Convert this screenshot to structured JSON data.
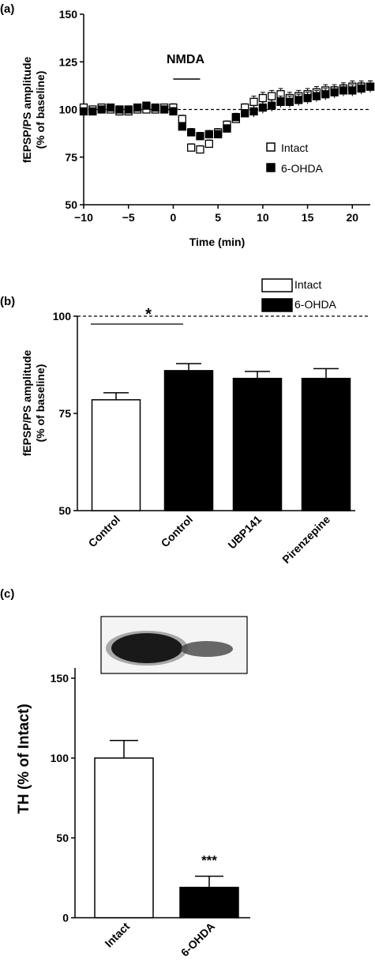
{
  "panel_labels": {
    "a": "(a)",
    "b": "(b)",
    "c": "(c)"
  },
  "colors": {
    "filled": "#000000",
    "open": "#ffffff",
    "axis": "#000000"
  },
  "chart_data": [
    {
      "panel": "(a)",
      "type": "scatter",
      "xlabel": "Time (min)",
      "ylabel_lines": [
        "fEPSP/PS amplitude",
        "(% of baseline)"
      ],
      "xlim": [
        -10,
        22
      ],
      "ylim": [
        50,
        150
      ],
      "xticks": [
        -10,
        -5,
        0,
        5,
        10,
        15,
        20
      ],
      "yticks": [
        50,
        75,
        100,
        125,
        150
      ],
      "reference_line": 100,
      "annotation": {
        "text": "NMDA",
        "from": 0,
        "to": 3,
        "y": 116
      },
      "series": [
        {
          "name": "Intact",
          "marker": "open-square",
          "x": [
            -10,
            -9,
            -8,
            -7,
            -6,
            -5,
            -4,
            -3,
            -2,
            -1,
            0,
            1,
            2,
            3,
            4,
            5,
            6,
            7,
            8,
            9,
            10,
            11,
            12,
            13,
            14,
            15,
            16,
            17,
            18,
            19,
            20,
            21,
            22
          ],
          "y": [
            101,
            100,
            101,
            100,
            99,
            99,
            100,
            100,
            100,
            101,
            101,
            95,
            80,
            79,
            82,
            88,
            92,
            95,
            101,
            104,
            106,
            107,
            108,
            106,
            107,
            108,
            109,
            110,
            110,
            111,
            112,
            112,
            112
          ],
          "err": [
            1,
            1,
            1,
            1,
            1,
            1,
            1,
            1,
            1,
            1,
            2,
            2,
            2,
            2,
            2,
            2,
            2,
            2,
            2,
            3,
            3,
            3,
            3,
            3,
            3,
            3,
            3,
            3,
            3,
            3,
            3,
            3,
            3
          ]
        },
        {
          "name": "6-OHDA",
          "marker": "filled-square",
          "x": [
            -10,
            -9,
            -8,
            -7,
            -6,
            -5,
            -4,
            -3,
            -2,
            -1,
            0,
            1,
            2,
            3,
            4,
            5,
            6,
            7,
            8,
            9,
            10,
            11,
            12,
            13,
            14,
            15,
            16,
            17,
            18,
            19,
            20,
            21,
            22
          ],
          "y": [
            99,
            99,
            100,
            101,
            100,
            100,
            101,
            102,
            101,
            100,
            99,
            91,
            88,
            86,
            87,
            87,
            90,
            96,
            98,
            99,
            101,
            102,
            104,
            104,
            105,
            106,
            107,
            108,
            109,
            110,
            110,
            111,
            112
          ],
          "err": [
            1,
            1,
            1,
            1,
            1,
            1,
            1,
            1,
            1,
            1,
            2,
            2,
            2,
            2,
            2,
            2,
            2,
            2,
            2,
            3,
            3,
            3,
            3,
            3,
            3,
            3,
            3,
            3,
            3,
            3,
            3,
            3,
            3
          ]
        }
      ],
      "legend": [
        "Intact",
        "6-OHDA"
      ]
    },
    {
      "panel": "(b)",
      "type": "bar",
      "ylabel_lines": [
        "fEPSP/PS amplitude",
        "(% of baseline)"
      ],
      "ylim": [
        50,
        100
      ],
      "yticks": [
        50,
        75,
        100
      ],
      "reference_line": 100,
      "categories": [
        "Control",
        "Control",
        "UBP141",
        "Pirenzepine"
      ],
      "values": [
        78.5,
        86,
        84,
        84
      ],
      "errors": [
        1.8,
        1.8,
        1.8,
        2.5
      ],
      "group": [
        "Intact",
        "6-OHDA",
        "6-OHDA",
        "6-OHDA"
      ],
      "legend": [
        "Intact",
        "6-OHDA"
      ],
      "significance": {
        "text": "*",
        "between": [
          0,
          1
        ]
      }
    },
    {
      "panel": "(c)",
      "type": "bar",
      "ylabel": "TH (% of Intact)",
      "ylim": [
        0,
        150
      ],
      "yticks": [
        0,
        50,
        100,
        150
      ],
      "categories": [
        "Intact",
        "6-OHDA"
      ],
      "values": [
        100,
        19
      ],
      "errors": [
        11,
        7
      ],
      "group": [
        "Intact",
        "6-OHDA"
      ],
      "significance": {
        "text": "***",
        "bar": 1
      }
    }
  ]
}
